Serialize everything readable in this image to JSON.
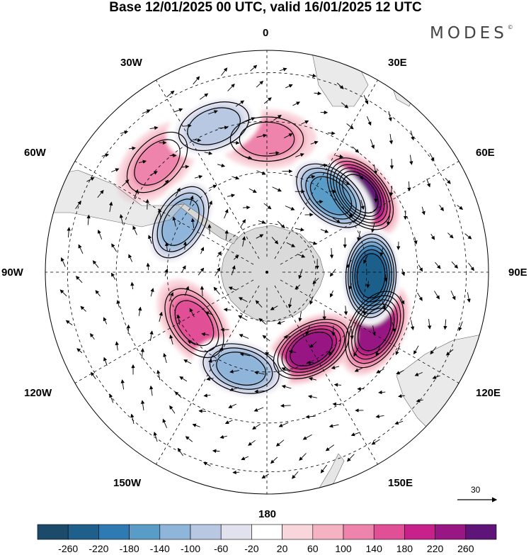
{
  "title": "Base 12/01/2025 00 UTC, valid 16/01/2025 12 UTC",
  "logo": {
    "text": "MODES",
    "mark": "©"
  },
  "longitude_labels": [
    "0",
    "30E",
    "60E",
    "90E",
    "120E",
    "150E",
    "180",
    "150W",
    "120W",
    "90W",
    "60W",
    "30W"
  ],
  "reference_vector": {
    "value": "30",
    "icon": "arrow-right-icon"
  },
  "colorbar": {
    "labels": [
      "-260",
      "-220",
      "-180",
      "-140",
      "-100",
      "-60",
      "-20",
      "20",
      "60",
      "100",
      "140",
      "180",
      "220",
      "260"
    ],
    "colors": [
      "#1b4a6b",
      "#1f5f8b",
      "#2f7ab3",
      "#5a9cc8",
      "#8fb6da",
      "#b8c8e2",
      "#e2e2ef",
      "#ffffff",
      "#f9d6dc",
      "#f5b2c3",
      "#ee83ab",
      "#e14f96",
      "#c9218b",
      "#981784",
      "#5e1478"
    ]
  },
  "map": {
    "projection": "south polar stereographic",
    "land_color": "#d6d6d6",
    "positive_anomalies": [
      {
        "lon": 50,
        "lat_ring": 0.55,
        "value": 260
      },
      {
        "lon": 118,
        "lat_ring": 0.55,
        "value": 220
      },
      {
        "lon": 150,
        "lat_ring": 0.4,
        "value": 220
      },
      {
        "lon": 0,
        "lat_ring": 0.6,
        "value": 100
      },
      {
        "lon": 315,
        "lat_ring": 0.7,
        "value": 100
      },
      {
        "lon": 235,
        "lat_ring": 0.4,
        "value": 140
      }
    ],
    "negative_anomalies": [
      {
        "lon": 92,
        "lat_ring": 0.47,
        "value": -260
      },
      {
        "lon": 40,
        "lat_ring": 0.45,
        "value": -180
      },
      {
        "lon": 195,
        "lat_ring": 0.45,
        "value": -140
      },
      {
        "lon": 340,
        "lat_ring": 0.7,
        "value": -100
      },
      {
        "lon": 300,
        "lat_ring": 0.45,
        "value": -140
      }
    ]
  }
}
